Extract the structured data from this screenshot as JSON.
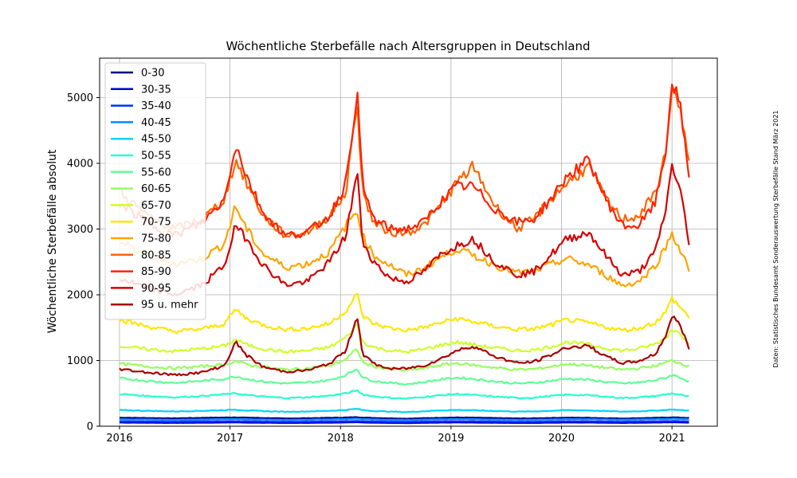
{
  "chart_data": {
    "type": "line",
    "title": "Wöchentliche Sterbefälle nach Altersgruppen in Deutschland",
    "xlabel": "",
    "ylabel": "Wöchentliche Sterbefälle absolut",
    "xlim": [
      2015.82,
      2021.41
    ],
    "ylim": [
      0,
      5600
    ],
    "x_ticks": [
      2016,
      2017,
      2018,
      2019,
      2020,
      2021
    ],
    "y_ticks": [
      0,
      1000,
      2000,
      3000,
      4000,
      5000
    ],
    "grid": true,
    "legend_position": "upper-left",
    "source_note": "Daten: Statistisches Bundesamt Sonderauswertung Sterbefälle Stand März 2021",
    "x_knots": [
      2016.0,
      2016.25,
      2016.5,
      2016.75,
      2016.95,
      2017.05,
      2017.15,
      2017.3,
      2017.5,
      2017.7,
      2017.9,
      2018.05,
      2018.15,
      2018.2,
      2018.3,
      2018.45,
      2018.6,
      2018.75,
      2018.9,
      2019.05,
      2019.2,
      2019.4,
      2019.6,
      2019.75,
      2019.9,
      2020.05,
      2020.25,
      2020.4,
      2020.55,
      2020.7,
      2020.85,
      2020.95,
      2021.0,
      2021.08,
      2021.17
    ],
    "series": [
      {
        "name": "0-30",
        "color": "#00007f",
        "values": [
          130,
          125,
          120,
          128,
          132,
          135,
          130,
          125,
          118,
          122,
          128,
          132,
          138,
          132,
          126,
          120,
          115,
          122,
          128,
          132,
          130,
          124,
          118,
          120,
          126,
          130,
          128,
          122,
          118,
          122,
          128,
          132,
          135,
          130,
          125
        ]
      },
      {
        "name": "30-35",
        "color": "#0000d5",
        "values": [
          55,
          52,
          50,
          53,
          56,
          58,
          55,
          52,
          49,
          51,
          54,
          57,
          60,
          56,
          53,
          50,
          48,
          51,
          54,
          57,
          55,
          52,
          49,
          50,
          53,
          56,
          55,
          52,
          50,
          52,
          55,
          58,
          60,
          57,
          55
        ]
      },
      {
        "name": "35-40",
        "color": "#0033ff",
        "values": [
          75,
          72,
          70,
          73,
          76,
          78,
          75,
          72,
          69,
          71,
          74,
          77,
          80,
          76,
          73,
          70,
          68,
          71,
          74,
          77,
          75,
          72,
          69,
          70,
          73,
          76,
          75,
          72,
          70,
          72,
          75,
          78,
          80,
          77,
          75
        ]
      },
      {
        "name": "40-45",
        "color": "#008cff",
        "values": [
          105,
          102,
          98,
          103,
          108,
          110,
          106,
          102,
          97,
          100,
          105,
          110,
          115,
          108,
          103,
          98,
          95,
          100,
          106,
          110,
          107,
          102,
          97,
          99,
          104,
          109,
          107,
          102,
          99,
          103,
          108,
          112,
          115,
          110,
          106
        ]
      },
      {
        "name": "45-50",
        "color": "#00d4ff",
        "values": [
          245,
          235,
          225,
          235,
          245,
          252,
          240,
          230,
          220,
          225,
          235,
          248,
          265,
          245,
          232,
          222,
          215,
          228,
          240,
          248,
          242,
          232,
          222,
          225,
          235,
          245,
          240,
          230,
          222,
          228,
          238,
          248,
          255,
          245,
          235
        ]
      },
      {
        "name": "50-55",
        "color": "#29ffce",
        "values": [
          490,
          460,
          440,
          460,
          485,
          500,
          475,
          450,
          430,
          440,
          465,
          500,
          545,
          485,
          455,
          432,
          420,
          445,
          470,
          490,
          475,
          450,
          430,
          435,
          460,
          480,
          470,
          450,
          430,
          440,
          460,
          485,
          500,
          475,
          440
        ]
      },
      {
        "name": "55-60",
        "color": "#60ff96",
        "values": [
          730,
          690,
          660,
          690,
          720,
          760,
          720,
          680,
          650,
          665,
          700,
          780,
          880,
          740,
          690,
          660,
          640,
          670,
          710,
          740,
          720,
          680,
          650,
          660,
          690,
          725,
          705,
          675,
          650,
          665,
          700,
          740,
          780,
          740,
          660
        ]
      },
      {
        "name": "60-65",
        "color": "#96ff60",
        "values": [
          950,
          910,
          880,
          910,
          940,
          990,
          940,
          900,
          860,
          880,
          920,
          1020,
          1180,
          970,
          910,
          870,
          850,
          880,
          930,
          960,
          930,
          890,
          860,
          870,
          905,
          950,
          920,
          890,
          860,
          880,
          920,
          970,
          1000,
          960,
          900
        ]
      },
      {
        "name": "65-70",
        "color": "#ceff29",
        "values": [
          1220,
          1170,
          1140,
          1180,
          1220,
          1320,
          1240,
          1180,
          1130,
          1150,
          1200,
          1350,
          1550,
          1280,
          1200,
          1150,
          1130,
          1170,
          1230,
          1280,
          1240,
          1190,
          1150,
          1160,
          1210,
          1280,
          1240,
          1190,
          1150,
          1180,
          1250,
          1350,
          1480,
          1400,
          1250
        ]
      },
      {
        "name": "70-75",
        "color": "#ffe600",
        "values": [
          1620,
          1520,
          1440,
          1480,
          1560,
          1780,
          1640,
          1540,
          1470,
          1490,
          1560,
          1760,
          2010,
          1680,
          1560,
          1490,
          1460,
          1500,
          1570,
          1640,
          1590,
          1520,
          1470,
          1480,
          1540,
          1620,
          1570,
          1510,
          1460,
          1490,
          1580,
          1750,
          1950,
          1800,
          1630
        ]
      },
      {
        "name": "75-80",
        "color": "#ffa400",
        "values": [
          2800,
          2600,
          2470,
          2550,
          2780,
          3350,
          3000,
          2620,
          2420,
          2470,
          2650,
          3060,
          3280,
          2900,
          2600,
          2450,
          2300,
          2400,
          2560,
          2700,
          2600,
          2450,
          2330,
          2360,
          2460,
          2550,
          2450,
          2300,
          2140,
          2200,
          2450,
          2750,
          2950,
          2650,
          2330
        ]
      },
      {
        "name": "80-85",
        "color": "#ff6400",
        "values": [
          3570,
          3200,
          3000,
          3150,
          3450,
          4050,
          3700,
          3200,
          2900,
          2950,
          3200,
          3550,
          4980,
          3550,
          3100,
          2950,
          2950,
          3050,
          3350,
          3700,
          3950,
          3350,
          3000,
          3150,
          3450,
          3700,
          3950,
          3450,
          3150,
          3200,
          3550,
          4200,
          5200,
          4750,
          3800
        ]
      },
      {
        "name": "85-90",
        "color": "#ff2200",
        "values": [
          3400,
          3100,
          2900,
          3100,
          3450,
          4300,
          3800,
          3250,
          2900,
          2950,
          3200,
          3700,
          5100,
          3650,
          3150,
          3000,
          3000,
          3100,
          3400,
          3650,
          3650,
          3300,
          3100,
          3150,
          3450,
          3800,
          4050,
          3450,
          3050,
          3050,
          3400,
          4250,
          5280,
          4800,
          3550
        ]
      },
      {
        "name": "90-95",
        "color": "#d40000",
        "values": [
          2250,
          2100,
          2000,
          2150,
          2450,
          3050,
          2850,
          2450,
          2150,
          2200,
          2500,
          2900,
          3880,
          2800,
          2500,
          2250,
          2200,
          2350,
          2600,
          2750,
          2850,
          2500,
          2300,
          2350,
          2600,
          2850,
          2950,
          2600,
          2300,
          2350,
          2650,
          3350,
          3980,
          3550,
          2600
        ]
      },
      {
        "name": "95 u. mehr",
        "color": "#a80000",
        "values": [
          870,
          820,
          780,
          820,
          920,
          1280,
          1080,
          900,
          830,
          850,
          950,
          1150,
          1690,
          1100,
          950,
          870,
          880,
          920,
          1020,
          1150,
          1220,
          1060,
          960,
          980,
          1080,
          1200,
          1220,
          1060,
          960,
          990,
          1100,
          1400,
          1680,
          1520,
          1100
        ]
      }
    ]
  }
}
